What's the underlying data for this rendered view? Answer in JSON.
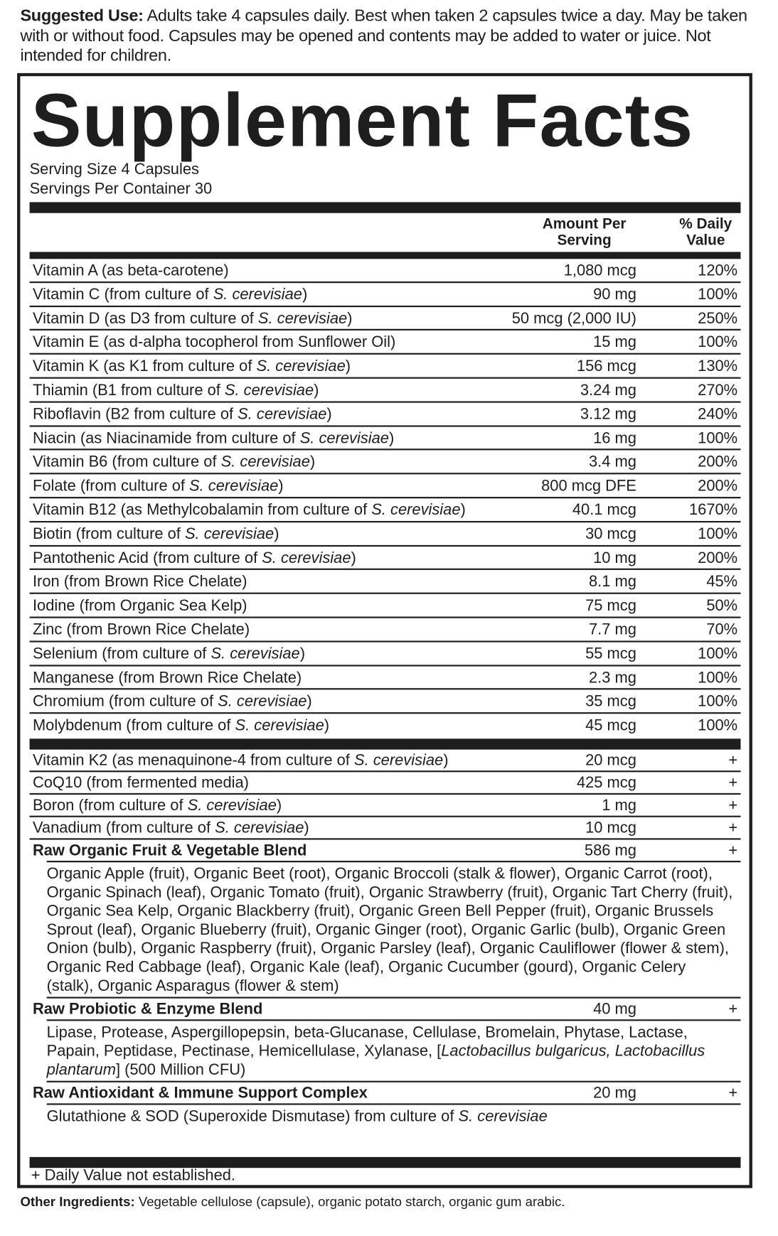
{
  "suggested_use": {
    "label": "Suggested Use:",
    "text": " Adults take 4 capsules daily. Best when taken 2 capsules twice a day. May be taken with or without food. Capsules may be opened and contents may be added to water or juice. Not intended for children."
  },
  "panel": {
    "title": "Supplement Facts",
    "serving_size": "Serving Size 4 Capsules",
    "servings_per_container": "Servings Per Container 30",
    "col_amount_1": "Amount Per",
    "col_amount_2": "Serving",
    "col_dv_1": "% Daily",
    "col_dv_2": "Value",
    "vitamins": [
      {
        "pre": "Vitamin A (as beta-carotene)",
        "it": "",
        "post": "",
        "amount": "1,080 mcg",
        "dv": "120%"
      },
      {
        "pre": "Vitamin C (from culture of ",
        "it": "S. cerevisiae",
        "post": ")",
        "amount": "90 mg",
        "dv": "100%"
      },
      {
        "pre": "Vitamin D (as D3 from culture of ",
        "it": "S. cerevisiae",
        "post": ")",
        "amount": "50 mcg (2,000 IU)",
        "dv": "250%"
      },
      {
        "pre": "Vitamin E (as d-alpha tocopherol from Sunflower Oil)",
        "it": "",
        "post": "",
        "amount": "15 mg",
        "dv": "100%"
      },
      {
        "pre": "Vitamin K (as K1 from culture of ",
        "it": "S. cerevisiae",
        "post": ")",
        "amount": "156 mcg",
        "dv": "130%"
      },
      {
        "pre": "Thiamin (B1 from culture of ",
        "it": "S. cerevisiae",
        "post": ")",
        "amount": "3.24 mg",
        "dv": "270%"
      },
      {
        "pre": "Riboflavin (B2 from culture of ",
        "it": "S. cerevisiae",
        "post": ")",
        "amount": "3.12 mg",
        "dv": "240%"
      },
      {
        "pre": "Niacin (as Niacinamide from culture of ",
        "it": "S. cerevisiae",
        "post": ")",
        "amount": "16 mg",
        "dv": "100%"
      },
      {
        "pre": "Vitamin B6 (from culture of ",
        "it": "S. cerevisiae",
        "post": ")",
        "amount": "3.4 mg",
        "dv": "200%"
      },
      {
        "pre": "Folate (from culture of ",
        "it": "S. cerevisiae",
        "post": ")",
        "amount": "800 mcg DFE",
        "dv": "200%"
      },
      {
        "pre": "Vitamin B12 (as Methylcobalamin from culture of ",
        "it": "S. cerevisiae",
        "post": ")",
        "amount": "40.1 mcg",
        "dv": "1670%"
      },
      {
        "pre": "Biotin (from culture of ",
        "it": "S. cerevisiae",
        "post": ")",
        "amount": "30 mcg",
        "dv": "100%"
      },
      {
        "pre": "Pantothenic Acid (from culture of ",
        "it": "S. cerevisiae",
        "post": ")",
        "amount": "10 mg",
        "dv": "200%"
      },
      {
        "pre": "Iron (from Brown Rice Chelate)",
        "it": "",
        "post": "",
        "amount": "8.1 mg",
        "dv": "45%"
      },
      {
        "pre": "Iodine (from Organic Sea Kelp)",
        "it": "",
        "post": "",
        "amount": "75 mcg",
        "dv": "50%"
      },
      {
        "pre": "Zinc (from Brown Rice Chelate)",
        "it": "",
        "post": "",
        "amount": "7.7 mg",
        "dv": "70%"
      },
      {
        "pre": "Selenium (from culture of ",
        "it": "S. cerevisiae",
        "post": ")",
        "amount": "55 mcg",
        "dv": "100%"
      },
      {
        "pre": "Manganese  (from Brown Rice Chelate)",
        "it": "",
        "post": "",
        "amount": "2.3 mg",
        "dv": "100%"
      },
      {
        "pre": "Chromium (from culture of ",
        "it": "S. cerevisiae",
        "post": ")",
        "amount": "35 mcg",
        "dv": "100%"
      },
      {
        "pre": "Molybdenum (from culture of ",
        "it": "S. cerevisiae",
        "post": ")",
        "amount": "45 mcg",
        "dv": "100%"
      }
    ],
    "others": [
      {
        "pre": "Vitamin K2 (as menaquinone-4 from culture of ",
        "it": "S. cerevisiae",
        "post": ")",
        "amount": "20 mcg",
        "dv": "+"
      },
      {
        "pre": "CoQ10 (from fermented media)",
        "it": "",
        "post": "",
        "amount": "425 mcg",
        "dv": "+"
      },
      {
        "pre": "Boron (from culture of ",
        "it": "S. cerevisiae",
        "post": ")",
        "amount": "1 mg",
        "dv": "+"
      },
      {
        "pre": "Vanadium (from culture of ",
        "it": "S. cerevisiae",
        "post": ")",
        "amount": "10 mcg",
        "dv": "+"
      }
    ],
    "blends": [
      {
        "name": "Raw Organic Fruit & Vegetable Blend",
        "amount": "586 mg",
        "dv": "+",
        "pre": "Organic Apple (fruit), Organic Beet (root), Organic Broccoli (stalk & flower), Organic Carrot (root), Organic Spinach (leaf), Organic Tomato (fruit), Organic Strawberry (fruit), Organic Tart Cherry (fruit), Organic Sea Kelp, Organic Blackberry (fruit), Organic Green Bell Pepper (fruit), Organic Brussels Sprout (leaf), Organic Blueberry (fruit), Organic Ginger (root), Organic Garlic (bulb), Organic Green Onion (bulb), Organic Raspberry (fruit), Organic Parsley (leaf), Organic Cauliflower (flower & stem), Organic Red Cabbage (leaf), Organic Kale (leaf), Organic Cucumber (gourd), Organic Celery (stalk), Organic Asparagus (flower & stem)",
        "it": "",
        "post": ""
      },
      {
        "name": "Raw Probiotic & Enzyme Blend",
        "amount": "40 mg",
        "dv": "+",
        "pre": "Lipase, Protease, Aspergillopepsin, beta-Glucanase, Cellulase, Bromelain, Phytase, Lactase, Papain, Peptidase, Pectinase, Hemicellulase, Xylanase, [",
        "it": "Lactobacillus bulgaricus, Lactobacillus plantarum",
        "post": "] (500 Million CFU)"
      },
      {
        "name": "Raw Antioxidant & Immune Support Complex",
        "amount": "20 mg",
        "dv": "+",
        "pre": "Glutathione & SOD (Superoxide Dismutase) from culture of ",
        "it": "S. cerevisiae",
        "post": ""
      }
    ],
    "footnote": "+ Daily Value not established."
  },
  "other_ingredients": {
    "label": "Other Ingredients:",
    "text": " Vegetable cellulose (capsule), organic potato starch, organic gum arabic."
  }
}
